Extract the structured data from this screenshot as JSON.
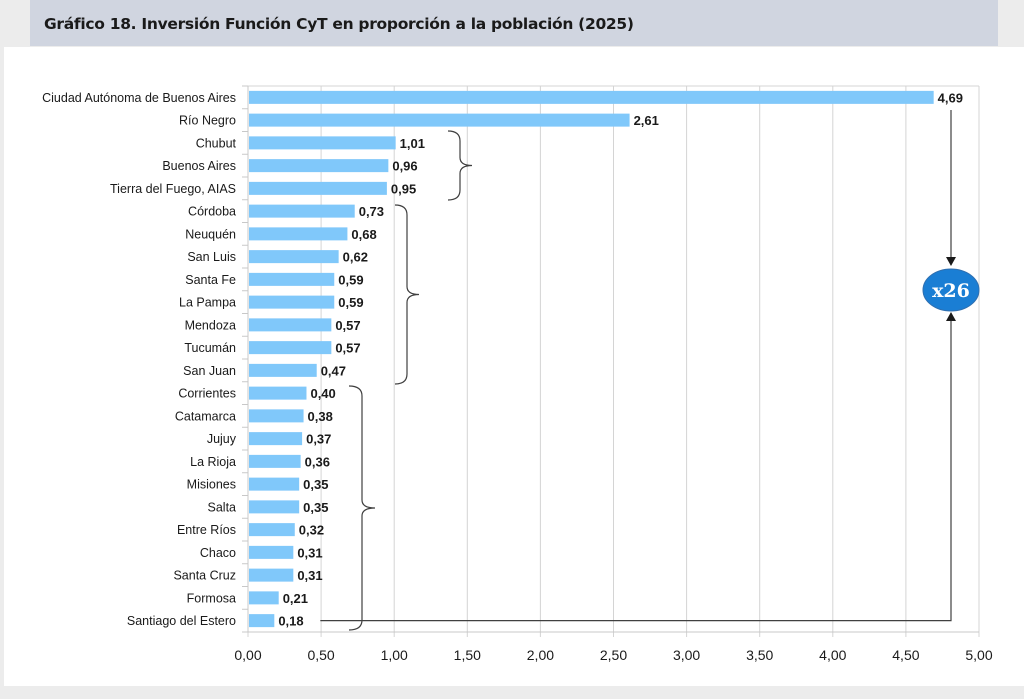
{
  "header": {
    "title": "Gráfico 18. Inversión Función CyT en proporción a la población (2025)"
  },
  "chart_data": {
    "type": "bar",
    "orientation": "horizontal",
    "title": "Gráfico 18. Inversión Función CyT en proporción a la población (2025)",
    "xlabel": "",
    "ylabel": "",
    "xlim": [
      0,
      5
    ],
    "grid": true,
    "bar_color": "#80c8fa",
    "categories": [
      "Ciudad Autónoma de Buenos Aires",
      "Río Negro",
      "Chubut",
      "Buenos Aires",
      "Tierra del Fuego, AIAS",
      "Córdoba",
      "Neuquén",
      "San Luis",
      "Santa Fe",
      "La Pampa",
      "Mendoza",
      "Tucumán",
      "San Juan",
      "Corrientes",
      "Catamarca",
      "Jujuy",
      "La Rioja",
      "Misiones",
      "Salta",
      "Entre Ríos",
      "Chaco",
      "Santa Cruz",
      "Formosa",
      "Santiago del Estero"
    ],
    "values": [
      4.69,
      2.61,
      1.01,
      0.96,
      0.95,
      0.73,
      0.68,
      0.62,
      0.59,
      0.59,
      0.57,
      0.57,
      0.47,
      0.4,
      0.38,
      0.37,
      0.36,
      0.35,
      0.35,
      0.32,
      0.31,
      0.31,
      0.21,
      0.18
    ],
    "value_labels": [
      "4,69",
      "2,61",
      "1,01",
      "0,96",
      "0,95",
      "0,73",
      "0,68",
      "0,62",
      "0,59",
      "0,59",
      "0,57",
      "0,57",
      "0,47",
      "0,40",
      "0,38",
      "0,37",
      "0,36",
      "0,35",
      "0,35",
      "0,32",
      "0,31",
      "0,31",
      "0,21",
      "0,18"
    ],
    "x_ticks": [
      0,
      0.5,
      1,
      1.5,
      2,
      2.5,
      3,
      3.5,
      4,
      4.5,
      5
    ],
    "x_tick_labels": [
      "0,00",
      "0,50",
      "1,00",
      "1,50",
      "2,00",
      "2,50",
      "3,00",
      "3,50",
      "4,00",
      "4,50",
      "5,00"
    ],
    "annotations": {
      "ratio_badge": {
        "text": "x26",
        "color": "#1a7ed4",
        "from": "Ciudad Autónoma de Buenos Aires",
        "to": "Santiago del Estero"
      },
      "brackets": [
        {
          "group": [
            "Chubut",
            "Buenos Aires",
            "Tierra del Fuego, AIAS"
          ]
        },
        {
          "group": [
            "Córdoba",
            "Neuquén",
            "San Luis",
            "Santa Fe",
            "La Pampa",
            "Mendoza",
            "Tucumán",
            "San Juan"
          ]
        },
        {
          "group": [
            "Corrientes",
            "Catamarca",
            "Jujuy",
            "La Rioja",
            "Misiones",
            "Salta",
            "Entre Ríos",
            "Chaco",
            "Santa Cruz",
            "Formosa",
            "Santiago del Estero"
          ]
        }
      ]
    }
  }
}
